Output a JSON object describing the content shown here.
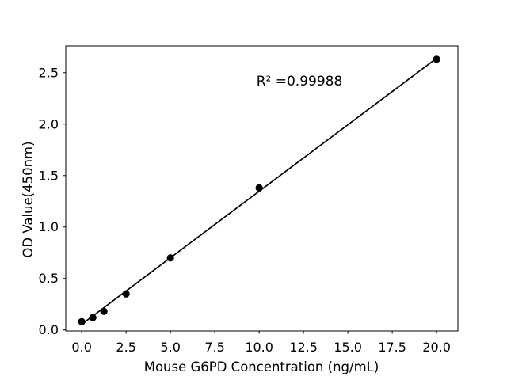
{
  "figure": {
    "background": "#ffffff",
    "text_color": "#000000"
  },
  "chart_data": {
    "type": "scatter",
    "title": "",
    "xlabel": "Mouse G6PD Concentration (ng/mL)",
    "ylabel": "OD Value(450nm)",
    "annotation": {
      "text": "R² =0.99988"
    },
    "r_squared": 0.99988,
    "points": {
      "name": "standard-curve-points",
      "x": [
        0,
        0.625,
        1.25,
        2.5,
        5,
        10,
        20
      ],
      "y": [
        0.08,
        0.12,
        0.18,
        0.35,
        0.7,
        1.38,
        2.63
      ]
    },
    "fit_line": {
      "name": "linear-fit-line",
      "x": [
        0,
        20
      ],
      "y": [
        0.055,
        2.64
      ]
    },
    "xticks": [
      0.0,
      2.5,
      5.0,
      7.5,
      10.0,
      12.5,
      15.0,
      17.5,
      20.0
    ],
    "xtick_labels": [
      "0.0",
      "2.5",
      "5.0",
      "7.5",
      "10.0",
      "12.5",
      "15.0",
      "17.5",
      "20.0"
    ],
    "yticks": [
      0.0,
      0.5,
      1.0,
      1.5,
      2.0,
      2.5
    ],
    "ytick_labels": [
      "0.0",
      "0.5",
      "1.0",
      "1.5",
      "2.0",
      "2.5"
    ],
    "xlim": [
      -0.9,
      21.2
    ],
    "ylim": [
      -0.01,
      2.76
    ],
    "grid": false,
    "legend": "none",
    "marker": "circle",
    "marker_color": "#000000",
    "line_color": "#000000",
    "axis_color": "#000000"
  }
}
